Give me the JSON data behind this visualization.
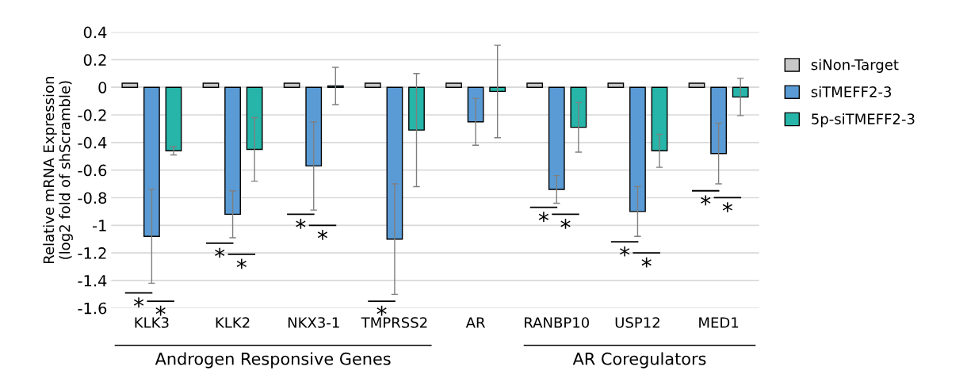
{
  "chart_data": {
    "type": "bar",
    "ylabel": "Relative mRNA Expression\n(log2 fold of shScramble)",
    "categories": [
      "KLK3",
      "KLK2",
      "NKX3-1",
      "TMPRSS2",
      "AR",
      "RANBP10",
      "USP12",
      "MED1"
    ],
    "series": [
      {
        "name": "siNon-Target",
        "color": "#c8c8c8",
        "values": [
          0.03,
          0.03,
          0.03,
          0.03,
          0.03,
          0.03,
          0.03,
          0.03
        ]
      },
      {
        "name": "siTMEFF2-3",
        "color": "#5b9bd5",
        "values": [
          -1.08,
          -0.92,
          -0.57,
          -1.1,
          -0.25,
          -0.74,
          -0.9,
          -0.48
        ],
        "errors": [
          0.34,
          0.17,
          0.32,
          0.4,
          0.17,
          0.1,
          0.18,
          0.22
        ]
      },
      {
        "name": "5p-siTMEFF2-3",
        "color": "#26b5a8",
        "values": [
          -0.46,
          -0.45,
          0.01,
          -0.31,
          -0.03,
          -0.29,
          -0.46,
          -0.07
        ],
        "errors": [
          0.03,
          0.23,
          0.135,
          0.41,
          0.335,
          0.18,
          0.12,
          0.135
        ]
      }
    ],
    "ylim": [
      -1.6,
      0.4
    ],
    "yticks": [
      -1.6,
      -1.4,
      -1.2,
      -1,
      -0.8,
      -0.6,
      -0.4,
      -0.2,
      0,
      0.2,
      0.4
    ],
    "grid": "y",
    "legend": "right",
    "annotations": [
      "*",
      "*",
      "*",
      "*",
      "*",
      "*",
      "*",
      "*",
      "*",
      "*",
      "*",
      "*",
      "*",
      "Androgen Responsive Genes",
      "AR Coregulators"
    ]
  }
}
